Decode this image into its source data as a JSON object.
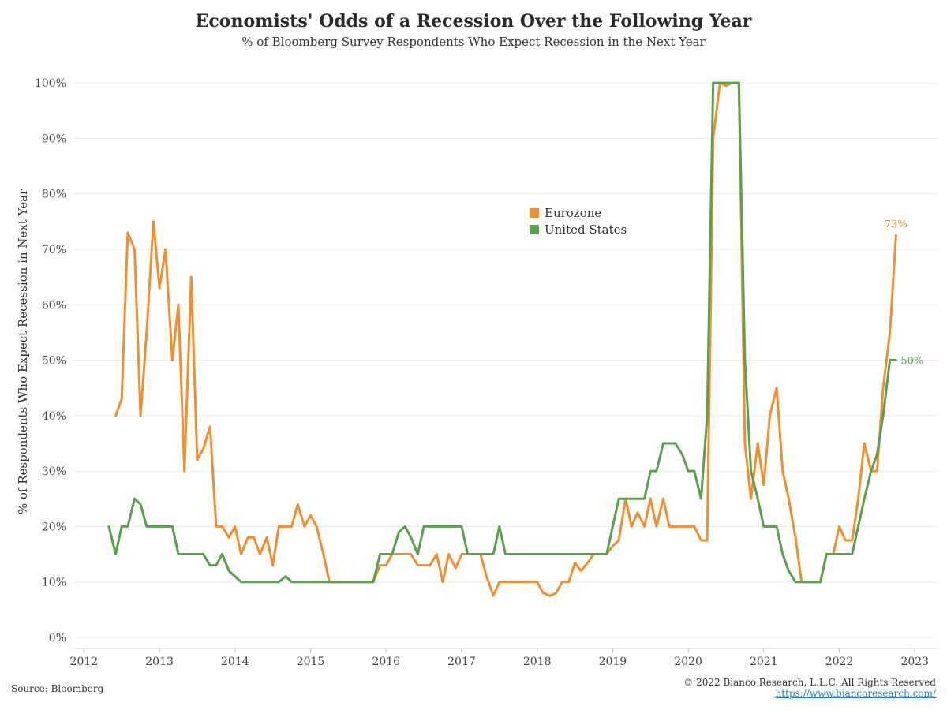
{
  "chart_data": {
    "type": "line",
    "title": "Economists' Odds of a Recession Over the Following Year",
    "subtitle": "% of Bloomberg Survey Respondents Who Expect Recession in the Next Year",
    "xlabel": "",
    "ylabel": "% of Respondents Who Expect Recession in Next Year",
    "xlim": [
      2011.85,
      2023.3
    ],
    "ylim": [
      -2,
      105
    ],
    "x_ticks": [
      2012,
      2013,
      2014,
      2015,
      2016,
      2017,
      2018,
      2019,
      2020,
      2021,
      2022,
      2023
    ],
    "y_ticks": [
      0,
      10,
      20,
      30,
      40,
      50,
      60,
      70,
      80,
      90,
      100
    ],
    "y_tick_suffix": "%",
    "grid": "horizontal",
    "legend_position": "center",
    "series": [
      {
        "name": "Eurozone",
        "color": "#f28e2b",
        "end_label": "73%",
        "points": [
          [
            2012.42,
            40
          ],
          [
            2012.5,
            43
          ],
          [
            2012.58,
            73
          ],
          [
            2012.67,
            70
          ],
          [
            2012.75,
            40
          ],
          [
            2012.83,
            55
          ],
          [
            2012.92,
            75
          ],
          [
            2013.0,
            63
          ],
          [
            2013.08,
            70
          ],
          [
            2013.17,
            50
          ],
          [
            2013.25,
            60
          ],
          [
            2013.33,
            30
          ],
          [
            2013.42,
            65
          ],
          [
            2013.5,
            32
          ],
          [
            2013.58,
            34
          ],
          [
            2013.67,
            38
          ],
          [
            2013.75,
            20
          ],
          [
            2013.83,
            20
          ],
          [
            2013.92,
            18
          ],
          [
            2014.0,
            20
          ],
          [
            2014.08,
            15
          ],
          [
            2014.17,
            18
          ],
          [
            2014.25,
            18
          ],
          [
            2014.33,
            15
          ],
          [
            2014.42,
            18
          ],
          [
            2014.5,
            13
          ],
          [
            2014.58,
            20
          ],
          [
            2014.67,
            20
          ],
          [
            2014.75,
            20
          ],
          [
            2014.83,
            24
          ],
          [
            2014.92,
            20
          ],
          [
            2015.0,
            22
          ],
          [
            2015.08,
            20
          ],
          [
            2015.17,
            15
          ],
          [
            2015.25,
            10
          ],
          [
            2015.33,
            10
          ],
          [
            2015.5,
            10
          ],
          [
            2015.67,
            10
          ],
          [
            2015.75,
            10
          ],
          [
            2015.83,
            10
          ],
          [
            2015.92,
            13
          ],
          [
            2016.0,
            13
          ],
          [
            2016.08,
            15
          ],
          [
            2016.17,
            15
          ],
          [
            2016.25,
            15
          ],
          [
            2016.33,
            15
          ],
          [
            2016.42,
            13
          ],
          [
            2016.5,
            13
          ],
          [
            2016.58,
            13
          ],
          [
            2016.67,
            15
          ],
          [
            2016.75,
            10
          ],
          [
            2016.83,
            15
          ],
          [
            2016.92,
            12.5
          ],
          [
            2017.0,
            15
          ],
          [
            2017.08,
            15
          ],
          [
            2017.17,
            15
          ],
          [
            2017.25,
            15
          ],
          [
            2017.33,
            11
          ],
          [
            2017.42,
            7.5
          ],
          [
            2017.5,
            10
          ],
          [
            2017.67,
            10
          ],
          [
            2017.83,
            10
          ],
          [
            2018.0,
            10
          ],
          [
            2018.08,
            8
          ],
          [
            2018.17,
            7.5
          ],
          [
            2018.25,
            8
          ],
          [
            2018.33,
            10
          ],
          [
            2018.42,
            10
          ],
          [
            2018.5,
            13.5
          ],
          [
            2018.58,
            12
          ],
          [
            2018.67,
            13.5
          ],
          [
            2018.75,
            15
          ],
          [
            2018.83,
            15
          ],
          [
            2018.92,
            15
          ],
          [
            2019.0,
            16.5
          ],
          [
            2019.08,
            17.5
          ],
          [
            2019.17,
            25
          ],
          [
            2019.25,
            20
          ],
          [
            2019.33,
            22.5
          ],
          [
            2019.42,
            20
          ],
          [
            2019.5,
            25
          ],
          [
            2019.58,
            20
          ],
          [
            2019.67,
            25
          ],
          [
            2019.75,
            20
          ],
          [
            2019.83,
            20
          ],
          [
            2019.92,
            20
          ],
          [
            2020.0,
            20
          ],
          [
            2020.08,
            20
          ],
          [
            2020.17,
            17.5
          ],
          [
            2020.25,
            17.5
          ],
          [
            2020.33,
            90
          ],
          [
            2020.42,
            100
          ],
          [
            2020.5,
            99.5
          ],
          [
            2020.58,
            100
          ],
          [
            2020.67,
            100
          ],
          [
            2020.75,
            35
          ],
          [
            2020.83,
            25
          ],
          [
            2020.92,
            35
          ],
          [
            2021.0,
            27.5
          ],
          [
            2021.08,
            40
          ],
          [
            2021.17,
            45
          ],
          [
            2021.25,
            30
          ],
          [
            2021.33,
            25
          ],
          [
            2021.42,
            18
          ],
          [
            2021.5,
            10
          ],
          [
            2021.58,
            10
          ],
          [
            2021.67,
            10
          ],
          [
            2021.75,
            10
          ],
          [
            2021.83,
            15
          ],
          [
            2021.92,
            15
          ],
          [
            2022.0,
            20
          ],
          [
            2022.08,
            17.5
          ],
          [
            2022.17,
            17.5
          ],
          [
            2022.25,
            25
          ],
          [
            2022.33,
            35
          ],
          [
            2022.42,
            30
          ],
          [
            2022.5,
            30
          ],
          [
            2022.58,
            45
          ],
          [
            2022.67,
            55
          ],
          [
            2022.75,
            72.5
          ]
        ]
      },
      {
        "name": "United States",
        "color": "#59a14f",
        "end_label": "50%",
        "points": [
          [
            2012.33,
            20
          ],
          [
            2012.42,
            15
          ],
          [
            2012.5,
            20
          ],
          [
            2012.58,
            20
          ],
          [
            2012.67,
            25
          ],
          [
            2012.75,
            24
          ],
          [
            2012.83,
            20
          ],
          [
            2012.92,
            20
          ],
          [
            2013.0,
            20
          ],
          [
            2013.08,
            20
          ],
          [
            2013.17,
            20
          ],
          [
            2013.25,
            15
          ],
          [
            2013.33,
            15
          ],
          [
            2013.42,
            15
          ],
          [
            2013.5,
            15
          ],
          [
            2013.58,
            15
          ],
          [
            2013.67,
            13
          ],
          [
            2013.75,
            13
          ],
          [
            2013.83,
            15
          ],
          [
            2013.92,
            12
          ],
          [
            2014.0,
            11
          ],
          [
            2014.08,
            10
          ],
          [
            2014.25,
            10
          ],
          [
            2014.42,
            10
          ],
          [
            2014.58,
            10
          ],
          [
            2014.67,
            11
          ],
          [
            2014.75,
            10
          ],
          [
            2014.92,
            10
          ],
          [
            2015.08,
            10
          ],
          [
            2015.25,
            10
          ],
          [
            2015.42,
            10
          ],
          [
            2015.58,
            10
          ],
          [
            2015.75,
            10
          ],
          [
            2015.83,
            10
          ],
          [
            2015.92,
            15
          ],
          [
            2016.0,
            15
          ],
          [
            2016.08,
            15
          ],
          [
            2016.17,
            19
          ],
          [
            2016.25,
            20
          ],
          [
            2016.33,
            18
          ],
          [
            2016.42,
            15
          ],
          [
            2016.5,
            20
          ],
          [
            2016.58,
            20
          ],
          [
            2016.67,
            20
          ],
          [
            2016.75,
            20
          ],
          [
            2016.83,
            20
          ],
          [
            2016.92,
            20
          ],
          [
            2017.0,
            20
          ],
          [
            2017.08,
            15
          ],
          [
            2017.17,
            15
          ],
          [
            2017.25,
            15
          ],
          [
            2017.33,
            15
          ],
          [
            2017.42,
            15
          ],
          [
            2017.5,
            20
          ],
          [
            2017.58,
            15
          ],
          [
            2017.67,
            15
          ],
          [
            2017.83,
            15
          ],
          [
            2018.0,
            15
          ],
          [
            2018.17,
            15
          ],
          [
            2018.33,
            15
          ],
          [
            2018.5,
            15
          ],
          [
            2018.67,
            15
          ],
          [
            2018.83,
            15
          ],
          [
            2018.92,
            15
          ],
          [
            2019.0,
            20
          ],
          [
            2019.08,
            25
          ],
          [
            2019.25,
            25
          ],
          [
            2019.42,
            25
          ],
          [
            2019.5,
            30
          ],
          [
            2019.58,
            30
          ],
          [
            2019.67,
            35
          ],
          [
            2019.75,
            35
          ],
          [
            2019.83,
            35
          ],
          [
            2019.92,
            33
          ],
          [
            2020.0,
            30
          ],
          [
            2020.08,
            30
          ],
          [
            2020.17,
            25
          ],
          [
            2020.25,
            40
          ],
          [
            2020.33,
            100
          ],
          [
            2020.42,
            100
          ],
          [
            2020.5,
            100
          ],
          [
            2020.58,
            100
          ],
          [
            2020.67,
            100
          ],
          [
            2020.75,
            50
          ],
          [
            2020.83,
            30
          ],
          [
            2020.92,
            25
          ],
          [
            2021.0,
            20
          ],
          [
            2021.08,
            20
          ],
          [
            2021.17,
            20
          ],
          [
            2021.25,
            15
          ],
          [
            2021.33,
            12
          ],
          [
            2021.42,
            10
          ],
          [
            2021.5,
            10
          ],
          [
            2021.58,
            10
          ],
          [
            2021.67,
            10
          ],
          [
            2021.75,
            10
          ],
          [
            2021.83,
            15
          ],
          [
            2021.92,
            15
          ],
          [
            2022.0,
            15
          ],
          [
            2022.08,
            15
          ],
          [
            2022.17,
            15
          ],
          [
            2022.25,
            20
          ],
          [
            2022.33,
            25
          ],
          [
            2022.42,
            30
          ],
          [
            2022.5,
            33
          ],
          [
            2022.58,
            40
          ],
          [
            2022.67,
            50
          ],
          [
            2022.75,
            50
          ]
        ]
      }
    ]
  },
  "footer": {
    "source": "Source: Bloomberg",
    "copyright": "© 2022 Bianco Research, L.L.C. All Rights Reserved",
    "url": "https://www.biancoresearch.com/"
  }
}
